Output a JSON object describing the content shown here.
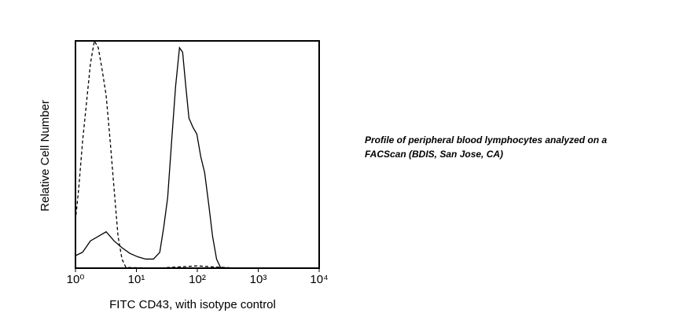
{
  "chart_data": {
    "type": "line",
    "x_label": "FITC CD43, with isotype control",
    "y_label": "Relative Cell Number",
    "annotation": [
      "Profile of peripheral blood lymphocytes analyzed on a",
      "FACScan (BDIS, San Jose, CA)"
    ],
    "xlog": true,
    "xlim": [
      1,
      10000
    ],
    "xticks": [
      {
        "value": 1,
        "label": "10⁰"
      },
      {
        "value": 10,
        "label": "10¹"
      },
      {
        "value": 100,
        "label": "10²"
      },
      {
        "value": 1000,
        "label": "10³"
      },
      {
        "value": 10000,
        "label": "10⁴"
      }
    ],
    "ylim": [
      0,
      100
    ],
    "series": [
      {
        "color": "#000000",
        "linestyle": "solid",
        "x": [
          1,
          1.31,
          1.76,
          2.37,
          3.19,
          4.3,
          5.8,
          7.81,
          10.5,
          14.2,
          19.1,
          24.2,
          28.1,
          32.6,
          37.9,
          44,
          51,
          57.4,
          64.7,
          72.9,
          84.7,
          98.2,
          114,
          132,
          154,
          178,
          207,
          240,
          435,
          1930,
          10000
        ],
        "values": [
          5.5,
          7,
          12,
          14,
          16,
          12,
          9,
          6.5,
          5,
          4,
          4,
          7,
          18,
          31,
          56,
          80,
          97,
          95,
          80,
          66,
          62,
          59,
          49,
          42,
          28,
          14,
          4,
          0.3,
          0,
          0,
          0
        ]
      },
      {
        "color": "#000000",
        "linestyle": "dashed",
        "x": [
          1,
          1.13,
          1.31,
          1.52,
          1.76,
          2.04,
          2.37,
          2.75,
          3.19,
          3.71,
          4.3,
          5,
          5.8,
          6.73,
          22,
          98.2,
          435,
          10000
        ],
        "values": [
          21,
          35,
          56,
          73,
          90,
          100,
          97,
          87,
          76,
          56,
          35,
          14,
          4,
          0.3,
          0,
          1,
          0,
          0
        ]
      }
    ]
  }
}
